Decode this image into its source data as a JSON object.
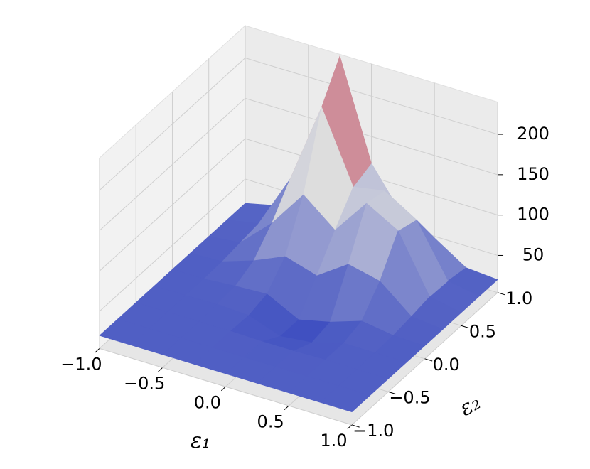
{
  "chart_data": {
    "type": "surface3d",
    "xlabel": "ε₁",
    "ylabel": "ε₂",
    "x": [
      -1,
      -0.75,
      -0.5,
      -0.25,
      0,
      0.25,
      0.5,
      0.75,
      1
    ],
    "y": [
      -1,
      -0.75,
      -0.5,
      -0.25,
      0,
      0.25,
      0.5,
      0.75,
      1
    ],
    "z": [
      [
        20,
        20,
        20,
        20,
        20,
        20,
        20,
        20,
        20
      ],
      [
        20,
        20,
        20,
        20,
        20,
        20,
        20,
        20,
        20
      ],
      [
        20,
        20,
        20,
        20,
        19,
        19,
        20,
        20,
        20
      ],
      [
        20,
        20,
        21,
        19,
        5,
        9,
        20,
        20,
        20
      ],
      [
        20,
        20,
        23,
        25,
        5,
        14,
        27,
        21,
        20
      ],
      [
        20,
        21,
        34,
        51,
        39,
        65,
        56,
        24,
        20
      ],
      [
        20,
        24,
        60,
        107,
        75,
        120,
        98,
        28,
        20
      ],
      [
        20,
        27,
        94,
        195,
        108,
        115,
        91,
        27,
        20
      ],
      [
        20,
        29,
        112,
        238,
        117,
        63,
        48,
        23,
        20
      ]
    ],
    "xlim": [
      -1,
      1
    ],
    "ylim": [
      -1,
      1
    ],
    "zlim": [
      4,
      240
    ],
    "xticks": [
      {
        "value": -1,
        "label": "−1.0"
      },
      {
        "value": -0.5,
        "label": "−0.5"
      },
      {
        "value": 0,
        "label": "0.0"
      },
      {
        "value": 0.5,
        "label": "0.5"
      },
      {
        "value": 1,
        "label": "1.0"
      }
    ],
    "yticks": [
      {
        "value": -1,
        "label": "−1.0"
      },
      {
        "value": -0.5,
        "label": "−0.5"
      },
      {
        "value": 0,
        "label": "0.0"
      },
      {
        "value": 0.5,
        "label": "0.5"
      },
      {
        "value": 1,
        "label": "1.0"
      }
    ],
    "zticks": [
      50,
      100,
      150,
      200
    ],
    "colormap": [
      "#3b4cc0",
      "#dddddd",
      "#b40426"
    ],
    "grid": true,
    "view": {
      "elev": 30,
      "azim": -60
    }
  }
}
